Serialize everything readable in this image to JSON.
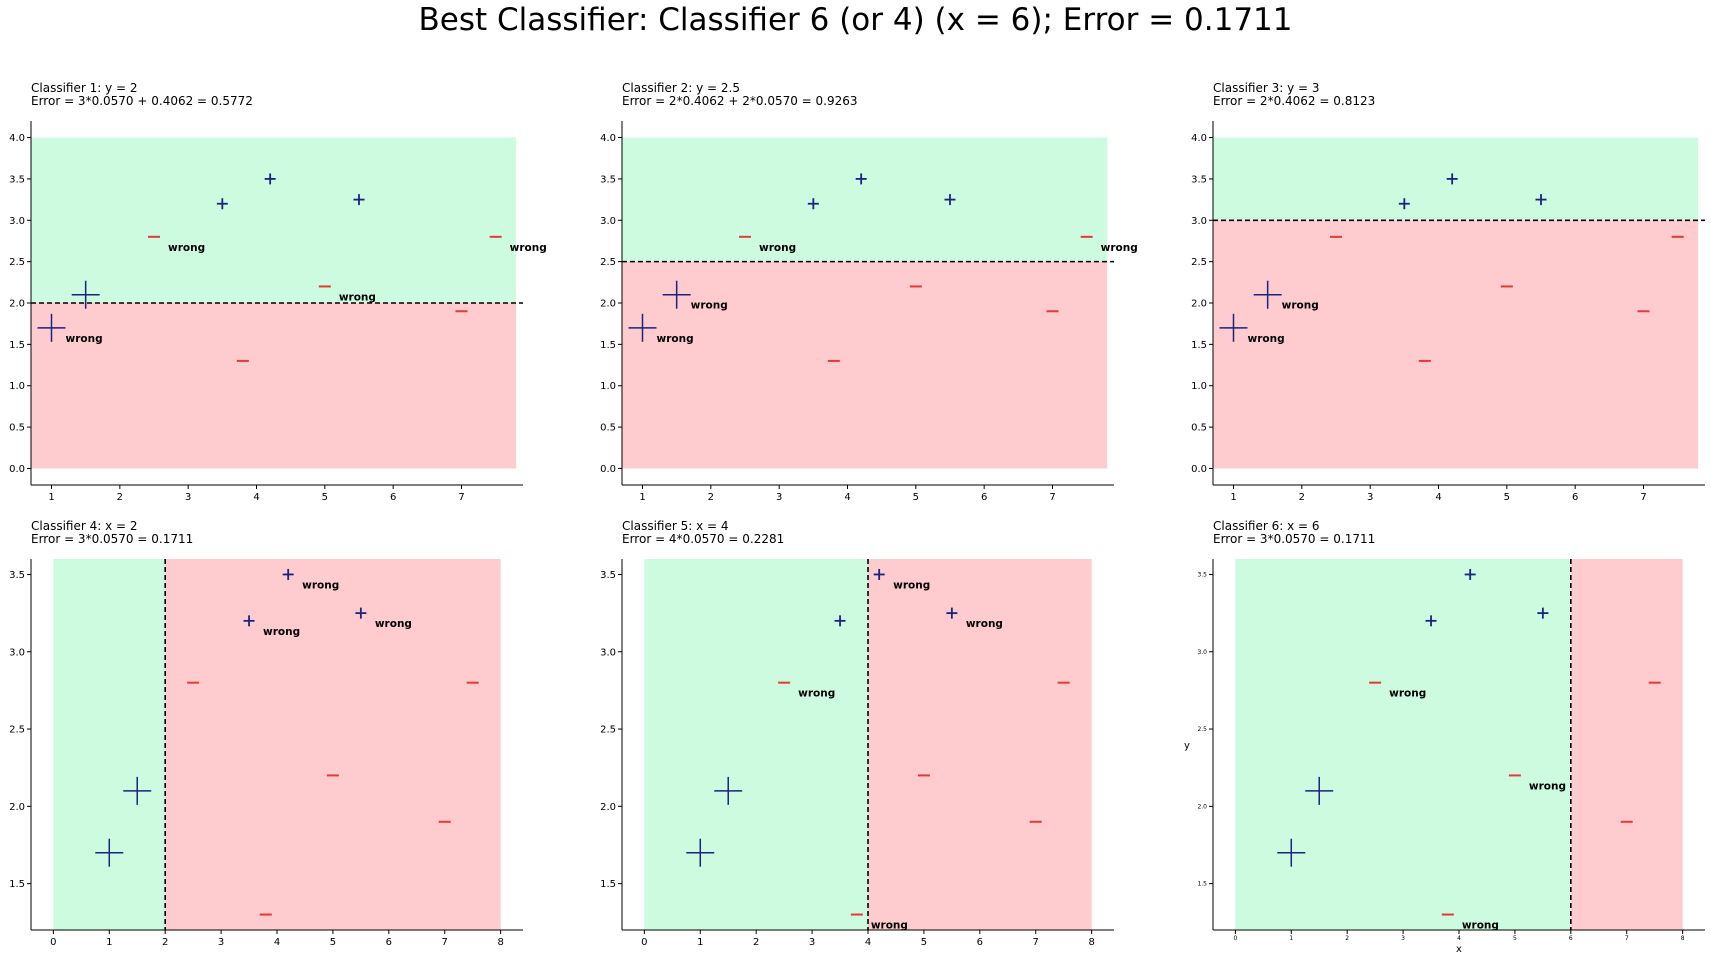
{
  "suptitle": "Best Classifier: Classifier 6 (or 4) (x = 6); Error = 0.1711",
  "colors": {
    "positive_region": "#ccfbe0",
    "negative_region": "#fecbce",
    "plus_marker": "#1a237e",
    "minus_marker": "#e53935",
    "boundary": "#000000"
  },
  "chart_data": [
    {
      "type": "scatter",
      "title_line1": "Classifier 1: y = 2",
      "title_line2": "Error = 3*0.0570 + 0.4062 = 0.5772",
      "orientation": "horizontal",
      "threshold": 2,
      "positive_side": "above",
      "region_x": [
        0.7,
        7.8
      ],
      "region_y": [
        0,
        4
      ],
      "xlim": [
        0.7,
        7.9
      ],
      "ylim": [
        -0.2,
        4.2
      ],
      "xticks": [
        1,
        2,
        3,
        4,
        5,
        6,
        7
      ],
      "yticks": [
        0.0,
        0.5,
        1.0,
        1.5,
        2.0,
        2.5,
        3.0,
        3.5,
        4.0
      ],
      "ytick_format": 1,
      "small_ticks": false,
      "xlabel": "",
      "ylabel": "",
      "points": [
        {
          "x": 1.0,
          "y": 1.7,
          "label": "+",
          "size": "large",
          "wrong": true
        },
        {
          "x": 1.5,
          "y": 2.1,
          "label": "+",
          "size": "large",
          "wrong": false
        },
        {
          "x": 3.5,
          "y": 3.2,
          "label": "+",
          "size": "small",
          "wrong": false
        },
        {
          "x": 4.2,
          "y": 3.5,
          "label": "+",
          "size": "small",
          "wrong": false
        },
        {
          "x": 5.5,
          "y": 3.25,
          "label": "+",
          "size": "small",
          "wrong": false
        },
        {
          "x": 2.5,
          "y": 2.8,
          "label": "-",
          "size": "small",
          "wrong": true
        },
        {
          "x": 3.8,
          "y": 1.3,
          "label": "-",
          "size": "small",
          "wrong": false
        },
        {
          "x": 5.0,
          "y": 2.2,
          "label": "-",
          "size": "small",
          "wrong": true
        },
        {
          "x": 7.0,
          "y": 1.9,
          "label": "-",
          "size": "small",
          "wrong": false
        },
        {
          "x": 7.5,
          "y": 2.8,
          "label": "-",
          "size": "small",
          "wrong": true
        }
      ],
      "annotation": "wrong"
    },
    {
      "type": "scatter",
      "title_line1": "Classifier 2: y = 2.5",
      "title_line2": "Error = 2*0.4062 + 2*0.0570 = 0.9263",
      "orientation": "horizontal",
      "threshold": 2.5,
      "positive_side": "above",
      "region_x": [
        0.7,
        7.8
      ],
      "region_y": [
        0,
        4
      ],
      "xlim": [
        0.7,
        7.9
      ],
      "ylim": [
        -0.2,
        4.2
      ],
      "xticks": [
        1,
        2,
        3,
        4,
        5,
        6,
        7
      ],
      "yticks": [
        0.0,
        0.5,
        1.0,
        1.5,
        2.0,
        2.5,
        3.0,
        3.5,
        4.0
      ],
      "ytick_format": 1,
      "small_ticks": false,
      "xlabel": "",
      "ylabel": "",
      "points": [
        {
          "x": 1.0,
          "y": 1.7,
          "label": "+",
          "size": "large",
          "wrong": true
        },
        {
          "x": 1.5,
          "y": 2.1,
          "label": "+",
          "size": "large",
          "wrong": true
        },
        {
          "x": 3.5,
          "y": 3.2,
          "label": "+",
          "size": "small",
          "wrong": false
        },
        {
          "x": 4.2,
          "y": 3.5,
          "label": "+",
          "size": "small",
          "wrong": false
        },
        {
          "x": 5.5,
          "y": 3.25,
          "label": "+",
          "size": "small",
          "wrong": false
        },
        {
          "x": 2.5,
          "y": 2.8,
          "label": "-",
          "size": "small",
          "wrong": true
        },
        {
          "x": 3.8,
          "y": 1.3,
          "label": "-",
          "size": "small",
          "wrong": false
        },
        {
          "x": 5.0,
          "y": 2.2,
          "label": "-",
          "size": "small",
          "wrong": false
        },
        {
          "x": 7.0,
          "y": 1.9,
          "label": "-",
          "size": "small",
          "wrong": false
        },
        {
          "x": 7.5,
          "y": 2.8,
          "label": "-",
          "size": "small",
          "wrong": true
        }
      ],
      "annotation": "wrong"
    },
    {
      "type": "scatter",
      "title_line1": "Classifier 3: y = 3",
      "title_line2": "Error = 2*0.4062 = 0.8123",
      "orientation": "horizontal",
      "threshold": 3,
      "positive_side": "above",
      "region_x": [
        0.7,
        7.8
      ],
      "region_y": [
        0,
        4
      ],
      "xlim": [
        0.7,
        7.9
      ],
      "ylim": [
        -0.2,
        4.2
      ],
      "xticks": [
        1,
        2,
        3,
        4,
        5,
        6,
        7
      ],
      "yticks": [
        0.0,
        0.5,
        1.0,
        1.5,
        2.0,
        2.5,
        3.0,
        3.5,
        4.0
      ],
      "ytick_format": 1,
      "small_ticks": false,
      "xlabel": "",
      "ylabel": "",
      "points": [
        {
          "x": 1.0,
          "y": 1.7,
          "label": "+",
          "size": "large",
          "wrong": true
        },
        {
          "x": 1.5,
          "y": 2.1,
          "label": "+",
          "size": "large",
          "wrong": true
        },
        {
          "x": 3.5,
          "y": 3.2,
          "label": "+",
          "size": "small",
          "wrong": false
        },
        {
          "x": 4.2,
          "y": 3.5,
          "label": "+",
          "size": "small",
          "wrong": false
        },
        {
          "x": 5.5,
          "y": 3.25,
          "label": "+",
          "size": "small",
          "wrong": false
        },
        {
          "x": 2.5,
          "y": 2.8,
          "label": "-",
          "size": "small",
          "wrong": false
        },
        {
          "x": 3.8,
          "y": 1.3,
          "label": "-",
          "size": "small",
          "wrong": false
        },
        {
          "x": 5.0,
          "y": 2.2,
          "label": "-",
          "size": "small",
          "wrong": false
        },
        {
          "x": 7.0,
          "y": 1.9,
          "label": "-",
          "size": "small",
          "wrong": false
        },
        {
          "x": 7.5,
          "y": 2.8,
          "label": "-",
          "size": "small",
          "wrong": false
        }
      ],
      "annotation": "wrong"
    },
    {
      "type": "scatter",
      "title_line1": "Classifier 4: x = 2",
      "title_line2": "Error = 3*0.0570 = 0.1711",
      "orientation": "vertical",
      "threshold": 2,
      "positive_side": "left",
      "region_x": [
        0,
        8
      ],
      "region_y": [
        1.2,
        3.6
      ],
      "xlim": [
        -0.4,
        8.4
      ],
      "ylim": [
        1.2,
        3.6
      ],
      "xticks": [
        0,
        1,
        2,
        3,
        4,
        5,
        6,
        7,
        8
      ],
      "yticks": [
        1.5,
        2.0,
        2.5,
        3.0,
        3.5
      ],
      "ytick_format": 1,
      "small_ticks": false,
      "xlabel": "",
      "ylabel": "",
      "points": [
        {
          "x": 1.0,
          "y": 1.7,
          "label": "+",
          "size": "large",
          "wrong": false
        },
        {
          "x": 1.5,
          "y": 2.1,
          "label": "+",
          "size": "large",
          "wrong": false
        },
        {
          "x": 3.5,
          "y": 3.2,
          "label": "+",
          "size": "small",
          "wrong": true
        },
        {
          "x": 4.2,
          "y": 3.5,
          "label": "+",
          "size": "small",
          "wrong": true
        },
        {
          "x": 5.5,
          "y": 3.25,
          "label": "+",
          "size": "small",
          "wrong": true
        },
        {
          "x": 2.5,
          "y": 2.8,
          "label": "-",
          "size": "small",
          "wrong": false
        },
        {
          "x": 3.8,
          "y": 1.3,
          "label": "-",
          "size": "small",
          "wrong": false
        },
        {
          "x": 5.0,
          "y": 2.2,
          "label": "-",
          "size": "small",
          "wrong": false
        },
        {
          "x": 7.0,
          "y": 1.9,
          "label": "-",
          "size": "small",
          "wrong": false
        },
        {
          "x": 7.5,
          "y": 2.8,
          "label": "-",
          "size": "small",
          "wrong": false
        }
      ],
      "annotation": "wrong"
    },
    {
      "type": "scatter",
      "title_line1": "Classifier 5: x = 4",
      "title_line2": "Error = 4*0.0570 = 0.2281",
      "orientation": "vertical",
      "threshold": 4,
      "positive_side": "left",
      "region_x": [
        0,
        8
      ],
      "region_y": [
        1.2,
        3.6
      ],
      "xlim": [
        -0.4,
        8.4
      ],
      "ylim": [
        1.2,
        3.6
      ],
      "xticks": [
        0,
        1,
        2,
        3,
        4,
        5,
        6,
        7,
        8
      ],
      "yticks": [
        1.5,
        2.0,
        2.5,
        3.0,
        3.5
      ],
      "ytick_format": 1,
      "small_ticks": false,
      "xlabel": "",
      "ylabel": "",
      "points": [
        {
          "x": 1.0,
          "y": 1.7,
          "label": "+",
          "size": "large",
          "wrong": false
        },
        {
          "x": 1.5,
          "y": 2.1,
          "label": "+",
          "size": "large",
          "wrong": false
        },
        {
          "x": 3.5,
          "y": 3.2,
          "label": "+",
          "size": "small",
          "wrong": false
        },
        {
          "x": 4.2,
          "y": 3.5,
          "label": "+",
          "size": "small",
          "wrong": true
        },
        {
          "x": 5.5,
          "y": 3.25,
          "label": "+",
          "size": "small",
          "wrong": true
        },
        {
          "x": 2.5,
          "y": 2.8,
          "label": "-",
          "size": "small",
          "wrong": true
        },
        {
          "x": 3.8,
          "y": 1.3,
          "label": "-",
          "size": "small",
          "wrong": true
        },
        {
          "x": 5.0,
          "y": 2.2,
          "label": "-",
          "size": "small",
          "wrong": false
        },
        {
          "x": 7.0,
          "y": 1.9,
          "label": "-",
          "size": "small",
          "wrong": false
        },
        {
          "x": 7.5,
          "y": 2.8,
          "label": "-",
          "size": "small",
          "wrong": false
        }
      ],
      "annotation": "wrong"
    },
    {
      "type": "scatter",
      "title_line1": "Classifier 6: x = 6",
      "title_line2": "Error = 3*0.0570 = 0.1711",
      "orientation": "vertical",
      "threshold": 6,
      "positive_side": "left",
      "region_x": [
        0,
        8
      ],
      "region_y": [
        1.2,
        3.6
      ],
      "xlim": [
        -0.4,
        8.4
      ],
      "ylim": [
        1.2,
        3.6
      ],
      "xticks": [
        0,
        1,
        2,
        3,
        4,
        5,
        6,
        7,
        8
      ],
      "yticks": [
        1.5,
        2.0,
        2.5,
        3.0,
        3.5
      ],
      "ytick_format": 1,
      "small_ticks": true,
      "xlabel": "x",
      "ylabel": "y",
      "points": [
        {
          "x": 1.0,
          "y": 1.7,
          "label": "+",
          "size": "large",
          "wrong": false
        },
        {
          "x": 1.5,
          "y": 2.1,
          "label": "+",
          "size": "large",
          "wrong": false
        },
        {
          "x": 3.5,
          "y": 3.2,
          "label": "+",
          "size": "small",
          "wrong": false
        },
        {
          "x": 4.2,
          "y": 3.5,
          "label": "+",
          "size": "small",
          "wrong": false
        },
        {
          "x": 5.5,
          "y": 3.25,
          "label": "+",
          "size": "small",
          "wrong": false
        },
        {
          "x": 2.5,
          "y": 2.8,
          "label": "-",
          "size": "small",
          "wrong": true
        },
        {
          "x": 3.8,
          "y": 1.3,
          "label": "-",
          "size": "small",
          "wrong": true
        },
        {
          "x": 5.0,
          "y": 2.2,
          "label": "-",
          "size": "small",
          "wrong": true
        },
        {
          "x": 7.0,
          "y": 1.9,
          "label": "-",
          "size": "small",
          "wrong": false
        },
        {
          "x": 7.5,
          "y": 2.8,
          "label": "-",
          "size": "small",
          "wrong": false
        }
      ],
      "annotation": "wrong"
    }
  ]
}
